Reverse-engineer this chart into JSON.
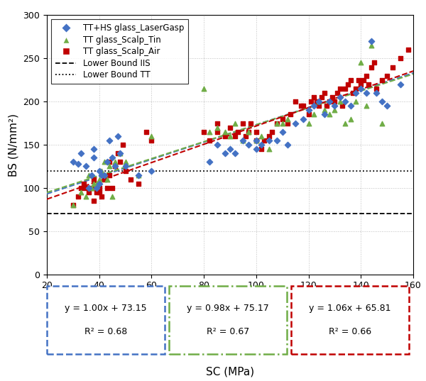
{
  "xlabel": "SC (MPa)",
  "ylabel": "BS (N/mm²)",
  "xlim": [
    20,
    160
  ],
  "ylim": [
    0,
    300
  ],
  "xticks": [
    20,
    40,
    60,
    80,
    100,
    120,
    140,
    160
  ],
  "yticks": [
    0,
    50,
    100,
    150,
    200,
    250,
    300
  ],
  "lower_bound_HS": 70,
  "lower_bound_TT": 120,
  "fit_blue": {
    "slope": 1.0,
    "intercept": 73.15,
    "R2": 0.68
  },
  "fit_green": {
    "slope": 0.98,
    "intercept": 75.17,
    "R2": 0.67
  },
  "fit_red": {
    "slope": 1.06,
    "intercept": 65.81,
    "R2": 0.66
  },
  "color_blue": "#4472C4",
  "color_green": "#70AD47",
  "color_red": "#C00000",
  "scatter_blue": [
    [
      30,
      130
    ],
    [
      32,
      128
    ],
    [
      33,
      140
    ],
    [
      35,
      125
    ],
    [
      36,
      100
    ],
    [
      37,
      115
    ],
    [
      38,
      145
    ],
    [
      38,
      135
    ],
    [
      39,
      100
    ],
    [
      40,
      105
    ],
    [
      40,
      120
    ],
    [
      41,
      115
    ],
    [
      42,
      115
    ],
    [
      43,
      130
    ],
    [
      44,
      155
    ],
    [
      45,
      135
    ],
    [
      46,
      125
    ],
    [
      47,
      160
    ],
    [
      48,
      140
    ],
    [
      50,
      125
    ],
    [
      55,
      115
    ],
    [
      60,
      120
    ],
    [
      82,
      130
    ],
    [
      85,
      150
    ],
    [
      88,
      140
    ],
    [
      90,
      145
    ],
    [
      92,
      140
    ],
    [
      95,
      155
    ],
    [
      97,
      150
    ],
    [
      100,
      145
    ],
    [
      100,
      155
    ],
    [
      102,
      150
    ],
    [
      105,
      155
    ],
    [
      108,
      155
    ],
    [
      110,
      165
    ],
    [
      112,
      150
    ],
    [
      115,
      175
    ],
    [
      118,
      180
    ],
    [
      120,
      190
    ],
    [
      122,
      195
    ],
    [
      124,
      200
    ],
    [
      126,
      185
    ],
    [
      128,
      200
    ],
    [
      130,
      195
    ],
    [
      132,
      205
    ],
    [
      134,
      200
    ],
    [
      136,
      195
    ],
    [
      138,
      210
    ],
    [
      140,
      215
    ],
    [
      142,
      210
    ],
    [
      144,
      270
    ],
    [
      146,
      210
    ],
    [
      148,
      200
    ],
    [
      150,
      195
    ],
    [
      155,
      220
    ]
  ],
  "scatter_green": [
    [
      30,
      80
    ],
    [
      33,
      95
    ],
    [
      35,
      90
    ],
    [
      36,
      115
    ],
    [
      37,
      100
    ],
    [
      38,
      105
    ],
    [
      39,
      105
    ],
    [
      40,
      110
    ],
    [
      41,
      120
    ],
    [
      42,
      130
    ],
    [
      43,
      110
    ],
    [
      44,
      125
    ],
    [
      45,
      90
    ],
    [
      46,
      130
    ],
    [
      48,
      140
    ],
    [
      50,
      130
    ],
    [
      55,
      115
    ],
    [
      60,
      160
    ],
    [
      80,
      215
    ],
    [
      82,
      165
    ],
    [
      85,
      170
    ],
    [
      88,
      165
    ],
    [
      90,
      160
    ],
    [
      92,
      175
    ],
    [
      95,
      155
    ],
    [
      97,
      165
    ],
    [
      100,
      155
    ],
    [
      102,
      160
    ],
    [
      105,
      145
    ],
    [
      108,
      175
    ],
    [
      110,
      175
    ],
    [
      112,
      180
    ],
    [
      120,
      175
    ],
    [
      122,
      185
    ],
    [
      124,
      200
    ],
    [
      126,
      190
    ],
    [
      128,
      185
    ],
    [
      130,
      190
    ],
    [
      132,
      200
    ],
    [
      134,
      175
    ],
    [
      136,
      180
    ],
    [
      138,
      200
    ],
    [
      140,
      245
    ],
    [
      142,
      195
    ],
    [
      144,
      265
    ],
    [
      148,
      175
    ]
  ],
  "scatter_red": [
    [
      30,
      80
    ],
    [
      32,
      90
    ],
    [
      33,
      100
    ],
    [
      34,
      105
    ],
    [
      35,
      100
    ],
    [
      36,
      95
    ],
    [
      37,
      100
    ],
    [
      38,
      110
    ],
    [
      38,
      85
    ],
    [
      39,
      95
    ],
    [
      40,
      100
    ],
    [
      40,
      95
    ],
    [
      41,
      90
    ],
    [
      42,
      110
    ],
    [
      43,
      100
    ],
    [
      44,
      115
    ],
    [
      44,
      130
    ],
    [
      45,
      100
    ],
    [
      46,
      125
    ],
    [
      47,
      140
    ],
    [
      48,
      130
    ],
    [
      49,
      150
    ],
    [
      50,
      120
    ],
    [
      52,
      110
    ],
    [
      55,
      105
    ],
    [
      58,
      165
    ],
    [
      60,
      155
    ],
    [
      80,
      165
    ],
    [
      82,
      155
    ],
    [
      85,
      175
    ],
    [
      85,
      165
    ],
    [
      88,
      160
    ],
    [
      90,
      170
    ],
    [
      92,
      160
    ],
    [
      93,
      165
    ],
    [
      95,
      175
    ],
    [
      96,
      160
    ],
    [
      97,
      165
    ],
    [
      98,
      175
    ],
    [
      100,
      155
    ],
    [
      100,
      165
    ],
    [
      102,
      145
    ],
    [
      103,
      155
    ],
    [
      105,
      160
    ],
    [
      106,
      165
    ],
    [
      108,
      175
    ],
    [
      110,
      180
    ],
    [
      112,
      175
    ],
    [
      113,
      185
    ],
    [
      115,
      200
    ],
    [
      117,
      195
    ],
    [
      118,
      195
    ],
    [
      120,
      185
    ],
    [
      121,
      200
    ],
    [
      122,
      205
    ],
    [
      123,
      200
    ],
    [
      124,
      195
    ],
    [
      125,
      205
    ],
    [
      126,
      210
    ],
    [
      127,
      195
    ],
    [
      128,
      200
    ],
    [
      129,
      205
    ],
    [
      130,
      200
    ],
    [
      131,
      210
    ],
    [
      132,
      215
    ],
    [
      133,
      195
    ],
    [
      134,
      215
    ],
    [
      135,
      220
    ],
    [
      136,
      225
    ],
    [
      137,
      210
    ],
    [
      138,
      215
    ],
    [
      139,
      225
    ],
    [
      140,
      220
    ],
    [
      141,
      225
    ],
    [
      142,
      230
    ],
    [
      143,
      220
    ],
    [
      144,
      240
    ],
    [
      145,
      245
    ],
    [
      146,
      215
    ],
    [
      148,
      225
    ],
    [
      150,
      230
    ],
    [
      152,
      240
    ],
    [
      155,
      250
    ],
    [
      158,
      260
    ]
  ],
  "background_color": "#FFFFFF",
  "grid_color": "#BFBFBF",
  "legend_labels": [
    "TT+HS glass_LaserGasp",
    "TT glass_Scalp_Tin",
    "TT glass_Scalp_Air",
    "Lower Bound IIS",
    "Lower Bound TT"
  ],
  "box_blue_text1": "y = 1.00x + 73.15",
  "box_blue_text2": "R² = 0.68",
  "box_green_text1": "y = 0.98x + 75.17",
  "box_green_text2": "R² = 0.67",
  "box_red_text1": "y = 1.06x + 65.81",
  "box_red_text2": "R² = 0.66"
}
